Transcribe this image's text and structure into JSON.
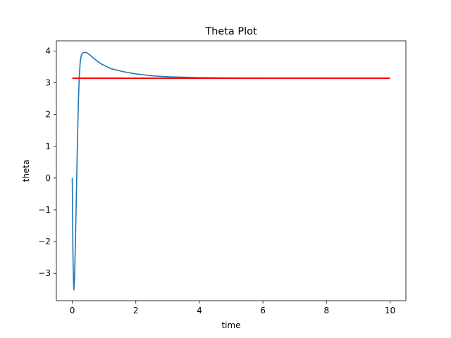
{
  "chart_data": {
    "type": "line",
    "title": "Theta Plot",
    "xlabel": "time",
    "ylabel": "theta",
    "xlim": [
      -0.5,
      10.5
    ],
    "ylim": [
      -3.86,
      4.32
    ],
    "xticks": [
      0,
      2,
      4,
      6,
      8,
      10
    ],
    "yticks": [
      -3,
      -2,
      -1,
      0,
      1,
      2,
      3,
      4
    ],
    "ytick_labels": [
      "−3",
      "−2",
      "−1",
      "0",
      "1",
      "2",
      "3",
      "4"
    ],
    "grid": false,
    "legend": "none",
    "series": [
      {
        "color": "#1f77b4",
        "x": [
          0,
          0.02,
          0.04,
          0.05,
          0.07,
          0.1,
          0.13,
          0.16,
          0.19,
          0.22,
          0.25,
          0.28,
          0.32,
          0.38,
          0.45,
          0.55,
          0.7,
          0.9,
          1.2,
          1.6,
          2.0,
          2.5,
          3.0,
          4.0,
          5.0,
          6.0,
          7.0,
          8.0,
          9.0,
          10.0
        ],
        "y": [
          0,
          -2.3,
          -3.3,
          -3.52,
          -3.2,
          -2.0,
          -0.5,
          1.0,
          2.3,
          3.2,
          3.65,
          3.85,
          3.93,
          3.96,
          3.95,
          3.88,
          3.75,
          3.6,
          3.45,
          3.35,
          3.28,
          3.22,
          3.19,
          3.16,
          3.15,
          3.145,
          3.143,
          3.142,
          3.14,
          3.14
        ]
      },
      {
        "color": "#ff0000",
        "x": [
          0,
          10
        ],
        "y": [
          3.1416,
          3.1416
        ]
      }
    ]
  }
}
